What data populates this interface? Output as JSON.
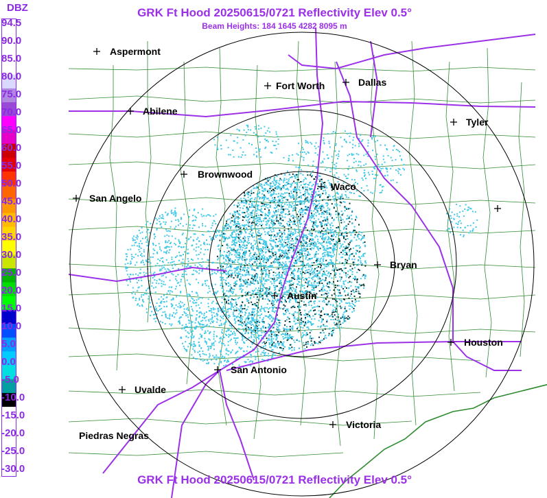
{
  "header": {
    "title": "GRK Ft Hood 20250615/0721 Reflectivity Elev 0.5°",
    "subtitle": "Beam Heights: 184 1645 4282 8095 m",
    "footer_title": "GRK Ft Hood 20250615/0721 Reflectivity Elev 0.5°"
  },
  "legend": {
    "unit": "DBZ",
    "ticks": [
      "94.5",
      "90.0",
      "85.0",
      "80.0",
      "75.0",
      "70.0",
      "65.0",
      "60.0",
      "55.0",
      "50.0",
      "45.0",
      "40.0",
      "35.0",
      "30.0",
      "25.0",
      "20.0",
      "15.0",
      "10.0",
      "5.0",
      "0.0",
      "-5.0",
      "-10.0",
      "-15.0",
      "-20.0",
      "-25.0",
      "-30.0"
    ],
    "colors": [
      "#ffffff",
      "#ffffff",
      "#ffffff",
      "#ffffff",
      "#d9d9ff",
      "#b088e0",
      "#9a49d6",
      "#ff00ff",
      "#e600c8",
      "#cc0000",
      "#e60000",
      "#ff3300",
      "#ff6600",
      "#ff9900",
      "#ffbb00",
      "#ffd700",
      "#ffff00",
      "#c8e600",
      "#00b400",
      "#00dd00",
      "#00ff00",
      "#0000cc",
      "#0050ff",
      "#00a0ff",
      "#00ccff",
      "#00e0e0",
      "#00a0a0",
      "#000000",
      "#ffffff",
      "#ffffff",
      "#ffffff",
      "#ffffff",
      "#ffffff"
    ]
  },
  "map": {
    "radar_site": "GRK",
    "cities": [
      {
        "name": "Aspermont"
      },
      {
        "name": "Fort Worth"
      },
      {
        "name": "Dallas"
      },
      {
        "name": "Abilene"
      },
      {
        "name": "Tyler"
      },
      {
        "name": "Brownwood"
      },
      {
        "name": "Waco"
      },
      {
        "name": "San Angelo"
      },
      {
        "name": "Bryan"
      },
      {
        "name": "Austin"
      },
      {
        "name": "Houston"
      },
      {
        "name": "San Antonio"
      },
      {
        "name": "Uvalde"
      },
      {
        "name": "Victoria"
      },
      {
        "name": "Piedras Negras"
      }
    ],
    "range_rings": 3,
    "colors": {
      "county_lines": "#2e8b2e",
      "highways": "#9b30e8",
      "range_rings": "#000000",
      "echo_light": "#40c8e8",
      "echo_dark": "#003030"
    }
  }
}
